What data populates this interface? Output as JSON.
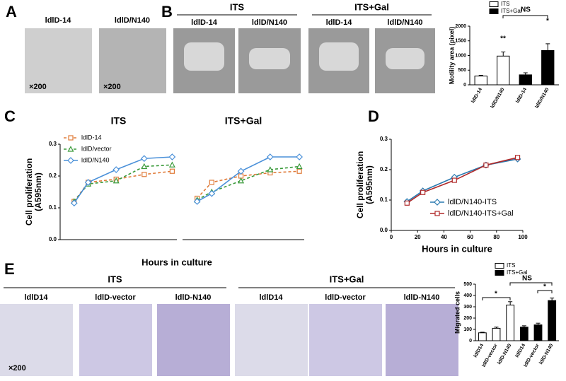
{
  "panels": {
    "A": {
      "letter": "A",
      "images": [
        {
          "label": "ldlD-14",
          "note": "×200"
        },
        {
          "label": "ldlD/N140",
          "note": "×200"
        }
      ]
    },
    "B": {
      "letter": "B",
      "groups": [
        {
          "label": "ITS",
          "images": [
            "ldlD-14",
            "ldlD/N140"
          ]
        },
        {
          "label": "ITS+Gal",
          "images": [
            "ldlD-14",
            "ldlD/N140"
          ]
        }
      ]
    },
    "C": {
      "letter": "C"
    },
    "D": {
      "letter": "D"
    },
    "E": {
      "letter": "E",
      "note": "×200",
      "groups": [
        {
          "label": "ITS",
          "images": [
            "ldlD14",
            "ldlD-vector",
            "ldlD-N140"
          ]
        },
        {
          "label": "ITS+Gal",
          "images": [
            "ldlD14",
            "ldlD-vector",
            "ldlD-N140"
          ]
        }
      ]
    }
  },
  "chart_data": [
    {
      "type": "bar",
      "ylabel": "Motility area (pixel)",
      "categories": [
        "ldlD-14",
        "ldlD/N140",
        "ldlD-14",
        "ldlD/N140"
      ],
      "series": [
        {
          "name": "ITS",
          "color": "#ffffff",
          "values": [
            300,
            980,
            null,
            null
          ],
          "errors": [
            25,
            140,
            null,
            null
          ]
        },
        {
          "name": "ITS+Gal",
          "color": "#000000",
          "values": [
            null,
            null,
            340,
            1170
          ],
          "errors": [
            null,
            null,
            70,
            230
          ]
        }
      ],
      "ylim": [
        0,
        2000
      ],
      "yticks": [
        0,
        500,
        1000,
        1500,
        2000
      ],
      "annotations": [
        "**",
        "*",
        "NS"
      ],
      "legend": "upper right"
    },
    {
      "type": "line",
      "title": "ITS",
      "ylabel": [
        "Cell proliferation",
        "(A595nm)"
      ],
      "xlabel": "Hours in culture",
      "x": [
        12,
        24,
        48,
        72,
        96
      ],
      "xlim": [
        0,
        100
      ],
      "ylim": [
        0,
        0.3
      ],
      "yticks": [
        {
          "value": 0,
          "label": "0.0"
        },
        0.1,
        0.2,
        0.3
      ],
      "legend": "upper left",
      "series": [
        {
          "name": "ldlD-14",
          "color": "#e07b39",
          "marker": "square",
          "dashed": true,
          "values": [
            0.12,
            0.18,
            0.19,
            0.205,
            0.215
          ]
        },
        {
          "name": "ldlD/vector",
          "color": "#3a9a3a",
          "marker": "triangle",
          "dashed": true,
          "values": [
            0.12,
            0.175,
            0.185,
            0.23,
            0.235
          ]
        },
        {
          "name": "ldlD/N140",
          "color": "#4a90d9",
          "marker": "diamond",
          "dashed": false,
          "values": [
            0.115,
            0.18,
            0.22,
            0.255,
            0.26
          ]
        }
      ]
    },
    {
      "type": "line",
      "title": "ITS+Gal",
      "x": [
        12,
        24,
        48,
        72,
        96
      ],
      "xlim": [
        0,
        100
      ],
      "ylim": [
        0,
        0.3
      ],
      "legend": "none",
      "series": [
        {
          "name": "ldlD-14",
          "color": "#e07b39",
          "marker": "square",
          "dashed": true,
          "values": [
            0.13,
            0.18,
            0.2,
            0.21,
            0.215
          ]
        },
        {
          "name": "ldlD/vector",
          "color": "#3a9a3a",
          "marker": "triangle",
          "dashed": true,
          "values": [
            0.125,
            0.15,
            0.185,
            0.22,
            0.23
          ]
        },
        {
          "name": "ldlD/N140",
          "color": "#4a90d9",
          "marker": "diamond",
          "dashed": false,
          "values": [
            0.12,
            0.145,
            0.215,
            0.26,
            0.26
          ]
        }
      ]
    },
    {
      "type": "line",
      "ylabel": [
        "Cell proliferation",
        "(A595nm)"
      ],
      "xlabel": "Hours in culture",
      "x": [
        12,
        24,
        48,
        72,
        96
      ],
      "xlim": [
        0,
        100
      ],
      "xticks": [
        0,
        20,
        40,
        60,
        80,
        100
      ],
      "ylim": [
        0,
        0.3
      ],
      "yticks": [
        {
          "value": 0,
          "label": "0.0"
        },
        0.1,
        0.2,
        0.3
      ],
      "legend": "lower right",
      "series": [
        {
          "name": "ldlD/N140-ITS",
          "color": "#2a7ab0",
          "marker": "diamond",
          "dashed": false,
          "values": [
            0.095,
            0.13,
            0.175,
            0.215,
            0.235
          ]
        },
        {
          "name": "ldlD/N140-ITS+Gal",
          "color": "#b02a2a",
          "marker": "square",
          "dashed": false,
          "values": [
            0.09,
            0.125,
            0.165,
            0.215,
            0.24
          ]
        }
      ]
    },
    {
      "type": "bar",
      "ylabel": "Migrated cells",
      "categories": [
        "ldlD14",
        "ldlD-vector",
        "ldlD-N140",
        "ldlD14",
        "ldlD-vector",
        "ldlD-N140"
      ],
      "series": [
        {
          "name": "ITS",
          "color": "#ffffff",
          "values": [
            70,
            110,
            315,
            null,
            null,
            null
          ],
          "errors": [
            5,
            10,
            30,
            null,
            null,
            null
          ]
        },
        {
          "name": "ITS+Gal",
          "color": "#000000",
          "values": [
            null,
            null,
            null,
            120,
            140,
            355
          ],
          "errors": [
            null,
            null,
            null,
            12,
            15,
            22
          ]
        }
      ],
      "ylim": [
        0,
        500
      ],
      "yticks": [
        0,
        100,
        200,
        300,
        400,
        500
      ],
      "annotations": [
        "*",
        "*",
        "NS"
      ],
      "legend": "upper right"
    }
  ]
}
